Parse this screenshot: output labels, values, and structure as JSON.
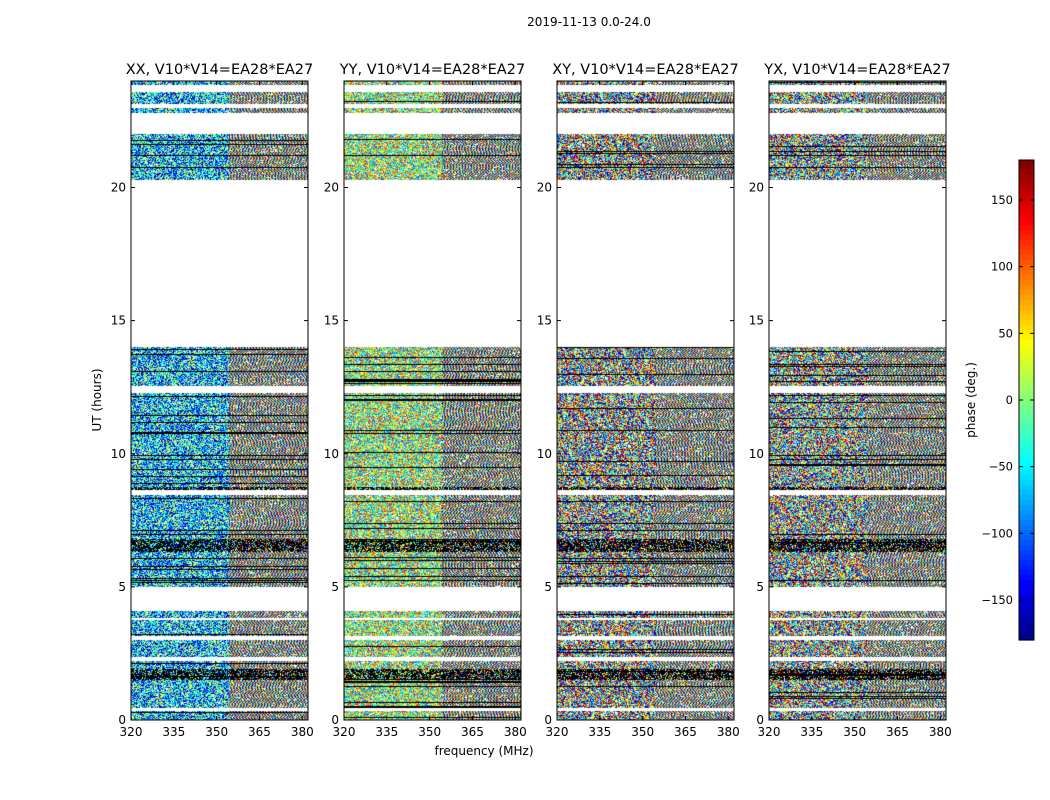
{
  "chart_data": {
    "type": "heatmap",
    "title": "2019-11-13 0.0-24.0",
    "xlabel": "frequency (MHz)",
    "ylabel": "UT (hours)",
    "xlim": [
      320,
      382
    ],
    "ylim": [
      0,
      24
    ],
    "xticks": [
      "320",
      "335",
      "350",
      "365",
      "380"
    ],
    "xtick_values": [
      320,
      335,
      350,
      365,
      380
    ],
    "yticks": [
      "0",
      "5",
      "10",
      "15",
      "20"
    ],
    "ytick_values": [
      0,
      5,
      10,
      15,
      20
    ],
    "colorbar": {
      "label": "phase (deg.)",
      "range": [
        -180,
        180
      ],
      "ticks": [
        "150",
        "100",
        "50",
        "0",
        "−50",
        "−100",
        "−150"
      ],
      "tick_values": [
        150,
        100,
        50,
        0,
        -50,
        -100,
        -150
      ],
      "colormap": "jet"
    },
    "panels": [
      {
        "title": "XX, V10*V14=EA28*EA27",
        "bias": -110,
        "strength": 0.6
      },
      {
        "title": "YY, V10*V14=EA28*EA27",
        "bias": 20,
        "strength": 0.55
      },
      {
        "title": "XY, V10*V14=EA28*EA27",
        "bias": 0,
        "strength": 0.0
      },
      {
        "title": "YX, V10*V14=EA28*EA27",
        "bias": 0,
        "strength": 0.05
      }
    ],
    "data_ut_ranges_hours": [
      [
        0.0,
        14.0
      ],
      [
        20.3,
        24.0
      ]
    ],
    "gap_ut_ranges_hours": [
      [
        0.35,
        0.45
      ],
      [
        2.2,
        2.35
      ],
      [
        3.0,
        3.15
      ],
      [
        3.75,
        3.82
      ],
      [
        4.1,
        4.2
      ],
      [
        4.2,
        5.0
      ],
      [
        8.45,
        8.65
      ],
      [
        12.3,
        12.55
      ],
      [
        14.0,
        20.3
      ],
      [
        22.0,
        22.8
      ],
      [
        23.0,
        23.15
      ],
      [
        23.6,
        23.85
      ]
    ],
    "flagged_ut_ranges_hours": [
      [
        6.3,
        6.8
      ],
      [
        1.5,
        1.9
      ],
      [
        8.6,
        8.75
      ]
    ]
  }
}
